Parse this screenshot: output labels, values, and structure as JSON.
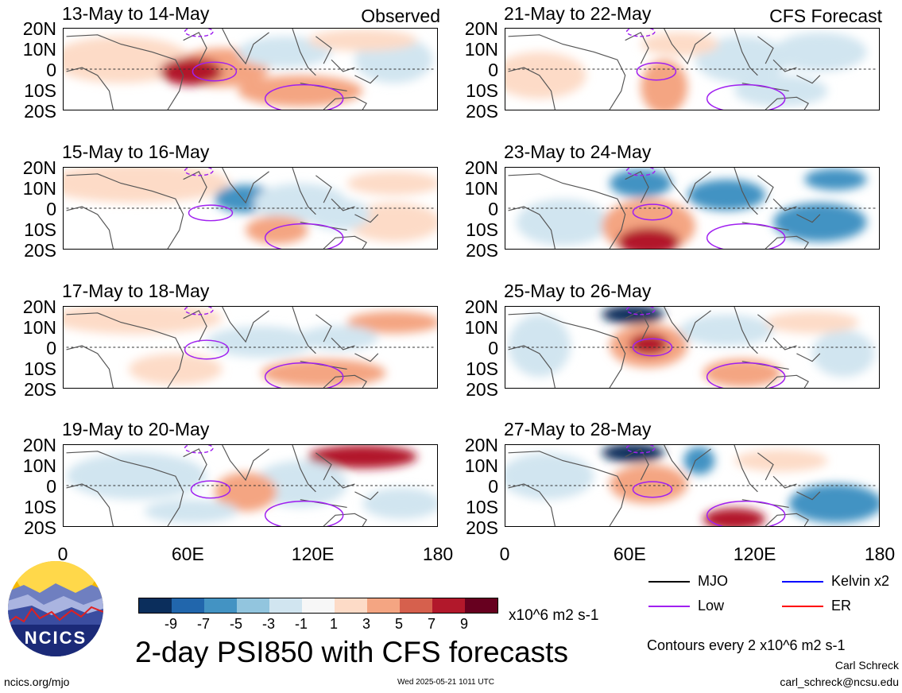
{
  "chart_data": {
    "type": "heatmap",
    "title": "2-day PSI850 with CFS forecasts",
    "variable": "PSI850 anomaly",
    "units": "x10^6 m2 s-1",
    "contour_note": "Contours every 2 x10^6 m2 s-1",
    "x_axis": {
      "range": [
        0,
        180
      ],
      "ticks": [
        "0",
        "60E",
        "120E",
        "180"
      ]
    },
    "y_axis": {
      "range": [
        -20,
        20
      ],
      "ticks": [
        "20N",
        "10N",
        "0",
        "10S",
        "20S"
      ]
    },
    "colorbar": {
      "levels": [
        "-9",
        "-7",
        "-5",
        "-3",
        "-1",
        "1",
        "3",
        "5",
        "7",
        "9"
      ],
      "colors": [
        "#0b2e5c",
        "#2166ac",
        "#4393c3",
        "#92c5de",
        "#d1e5f0",
        "#f7f7f7",
        "#fddbc7",
        "#f4a582",
        "#d6604d",
        "#b2182b",
        "#67001f"
      ]
    },
    "legend": [
      {
        "label": "MJO",
        "color": "#000000"
      },
      {
        "label": "Kelvin x2",
        "color": "#0000ff"
      },
      {
        "label": "Low",
        "color": "#a020f0"
      },
      {
        "label": "ER",
        "color": "#ff0000"
      }
    ],
    "columns": [
      {
        "label": "Observed",
        "panels": [
          {
            "title": "13-May to 14-May"
          },
          {
            "title": "15-May to 16-May"
          },
          {
            "title": "17-May to 18-May"
          },
          {
            "title": "19-May to 20-May"
          }
        ]
      },
      {
        "label": "CFS Forecast",
        "panels": [
          {
            "title": "21-May to 22-May"
          },
          {
            "title": "23-May to 24-May"
          },
          {
            "title": "25-May to 26-May"
          },
          {
            "title": "27-May to 28-May"
          }
        ]
      }
    ]
  },
  "footer": {
    "logo_text": "NCICS",
    "site": "ncics.org/mjo",
    "timestamp": "Wed 2025-05-21 1011 UTC",
    "author": "Carl Schreck",
    "email": "carl_schreck@ncsu.edu"
  },
  "colors": {
    "neg_strong": "#0b2e5c",
    "neg_med": "#4393c3",
    "neg_weak": "#d1e5f0",
    "pos_weak": "#fddbc7",
    "pos_med": "#f4a582",
    "pos_strong": "#b2182b",
    "low_contour": "#a020f0",
    "land": "#555555"
  }
}
